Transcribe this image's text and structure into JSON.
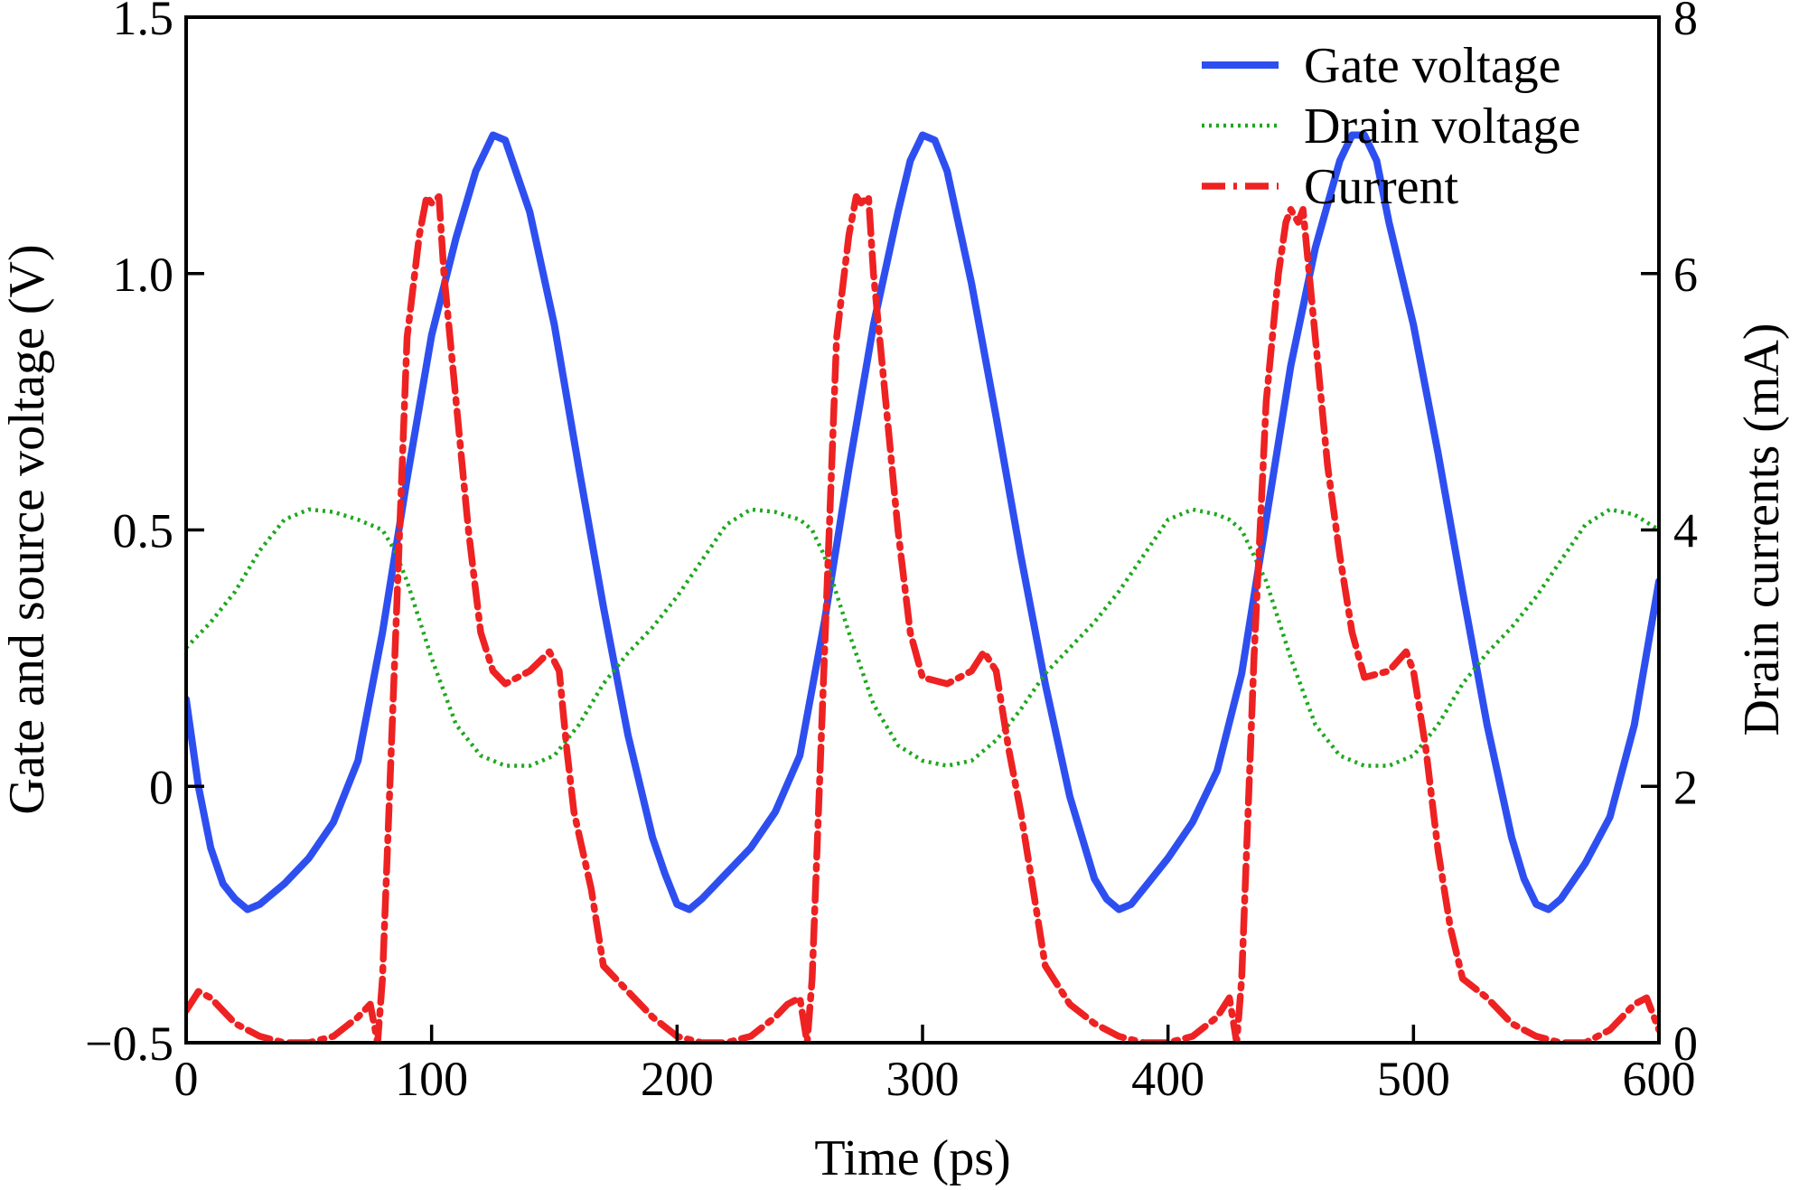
{
  "chart_data": {
    "type": "line",
    "xlabel": "Time (ps)",
    "ylabel_left": "Gate and source voltage (V)",
    "ylabel_right": "Drain currents (mA)",
    "xlim": [
      0,
      600
    ],
    "ylim_left": [
      -0.5,
      1.5
    ],
    "ylim_right": [
      0,
      8
    ],
    "x_ticks": [
      0,
      100,
      200,
      300,
      400,
      500,
      600
    ],
    "x_tick_labels": [
      "0",
      "100",
      "200",
      "300",
      "400",
      "500",
      "600"
    ],
    "y_left_ticks": [
      -0.5,
      0,
      0.5,
      1.0,
      1.5
    ],
    "y_left_tick_labels": [
      "−0.5",
      "0",
      "0.5",
      "1.0",
      "1.5"
    ],
    "y_right_ticks": [
      0,
      2,
      4,
      6,
      8
    ],
    "y_right_tick_labels": [
      "0",
      "2",
      "4",
      "6",
      "8"
    ],
    "grid": false,
    "legend_position": "top-right",
    "series": [
      {
        "name": "Gate voltage",
        "axis": "left",
        "color": "#2e4ff0",
        "style": "solid",
        "x": [
          0,
          5,
          10,
          15,
          20,
          25,
          30,
          40,
          50,
          60,
          70,
          80,
          90,
          100,
          110,
          118,
          125,
          130,
          140,
          150,
          160,
          170,
          180,
          190,
          195,
          200,
          205,
          210,
          220,
          230,
          240,
          250,
          260,
          270,
          280,
          290,
          295,
          300,
          305,
          310,
          320,
          330,
          340,
          350,
          360,
          370,
          375,
          380,
          385,
          390,
          400,
          410,
          420,
          430,
          440,
          450,
          460,
          470,
          475,
          480,
          485,
          490,
          500,
          510,
          520,
          530,
          540,
          545,
          550,
          555,
          560,
          570,
          580,
          590,
          600
        ],
        "y": [
          0.17,
          0.0,
          -0.12,
          -0.19,
          -0.22,
          -0.24,
          -0.23,
          -0.19,
          -0.14,
          -0.07,
          0.05,
          0.3,
          0.6,
          0.88,
          1.07,
          1.2,
          1.27,
          1.26,
          1.12,
          0.9,
          0.62,
          0.35,
          0.1,
          -0.1,
          -0.17,
          -0.23,
          -0.24,
          -0.22,
          -0.17,
          -0.12,
          -0.05,
          0.06,
          0.32,
          0.62,
          0.9,
          1.12,
          1.22,
          1.27,
          1.26,
          1.2,
          0.98,
          0.72,
          0.45,
          0.2,
          -0.02,
          -0.18,
          -0.22,
          -0.24,
          -0.23,
          -0.2,
          -0.14,
          -0.07,
          0.03,
          0.22,
          0.52,
          0.82,
          1.05,
          1.22,
          1.27,
          1.27,
          1.22,
          1.1,
          0.9,
          0.65,
          0.38,
          0.12,
          -0.1,
          -0.18,
          -0.23,
          -0.24,
          -0.22,
          -0.15,
          -0.06,
          0.12,
          0.4
        ]
      },
      {
        "name": "Drain voltage",
        "axis": "left",
        "color": "#1ea81e",
        "style": "dotted",
        "x": [
          0,
          10,
          20,
          30,
          40,
          50,
          60,
          70,
          80,
          85,
          90,
          100,
          110,
          120,
          130,
          140,
          150,
          160,
          170,
          180,
          190,
          200,
          210,
          220,
          230,
          240,
          250,
          255,
          260,
          270,
          280,
          290,
          300,
          310,
          320,
          330,
          340,
          350,
          360,
          370,
          380,
          390,
          400,
          410,
          420,
          425,
          430,
          440,
          450,
          460,
          470,
          480,
          490,
          500,
          510,
          520,
          530,
          540,
          550,
          560,
          570,
          580,
          590,
          600
        ],
        "y": [
          0.27,
          0.32,
          0.38,
          0.46,
          0.52,
          0.54,
          0.535,
          0.52,
          0.5,
          0.46,
          0.4,
          0.25,
          0.12,
          0.06,
          0.04,
          0.04,
          0.06,
          0.12,
          0.2,
          0.26,
          0.31,
          0.37,
          0.44,
          0.51,
          0.54,
          0.535,
          0.52,
          0.5,
          0.45,
          0.3,
          0.16,
          0.08,
          0.05,
          0.04,
          0.05,
          0.09,
          0.15,
          0.22,
          0.27,
          0.32,
          0.38,
          0.45,
          0.52,
          0.54,
          0.53,
          0.52,
          0.5,
          0.4,
          0.25,
          0.12,
          0.06,
          0.04,
          0.04,
          0.06,
          0.12,
          0.2,
          0.26,
          0.31,
          0.37,
          0.44,
          0.51,
          0.54,
          0.53,
          0.5
        ]
      },
      {
        "name": "Current",
        "axis": "right",
        "color": "#ee2222",
        "style": "dashdot",
        "x": [
          0,
          5,
          10,
          20,
          30,
          40,
          50,
          60,
          70,
          75,
          78,
          80,
          85,
          90,
          95,
          98,
          100,
          103,
          105,
          110,
          115,
          120,
          125,
          130,
          140,
          148,
          152,
          155,
          158,
          165,
          170,
          180,
          190,
          200,
          210,
          220,
          230,
          240,
          245,
          250,
          253,
          255,
          260,
          265,
          270,
          273,
          275,
          278,
          280,
          285,
          290,
          295,
          300,
          310,
          320,
          325,
          330,
          335,
          340,
          345,
          350,
          360,
          370,
          380,
          390,
          400,
          410,
          420,
          425,
          428,
          430,
          435,
          440,
          445,
          448,
          450,
          453,
          455,
          460,
          465,
          470,
          475,
          480,
          490,
          497,
          500,
          505,
          510,
          515,
          520,
          530,
          540,
          550,
          560,
          570,
          580,
          590,
          595,
          600
        ],
        "y": [
          0.25,
          0.4,
          0.35,
          0.15,
          0.05,
          0.0,
          0.0,
          0.05,
          0.2,
          0.3,
          0.0,
          0.5,
          3.0,
          5.5,
          6.3,
          6.6,
          6.55,
          6.6,
          6.0,
          5.0,
          4.0,
          3.2,
          2.9,
          2.8,
          2.9,
          3.05,
          2.9,
          2.3,
          1.8,
          1.2,
          0.6,
          0.4,
          0.2,
          0.05,
          0.0,
          0.0,
          0.05,
          0.2,
          0.3,
          0.35,
          0.0,
          0.5,
          3.0,
          5.5,
          6.3,
          6.6,
          6.55,
          6.6,
          6.0,
          5.0,
          4.0,
          3.2,
          2.85,
          2.8,
          2.9,
          3.05,
          2.9,
          2.3,
          1.8,
          1.2,
          0.6,
          0.3,
          0.15,
          0.05,
          0.0,
          0.0,
          0.05,
          0.2,
          0.35,
          0.0,
          0.5,
          3.0,
          5.0,
          6.0,
          6.4,
          6.5,
          6.4,
          6.5,
          5.5,
          4.5,
          3.8,
          3.2,
          2.85,
          2.9,
          3.05,
          2.9,
          2.3,
          1.5,
          0.9,
          0.5,
          0.35,
          0.15,
          0.05,
          0.0,
          0.0,
          0.1,
          0.3,
          0.35,
          0.1
        ]
      }
    ]
  }
}
